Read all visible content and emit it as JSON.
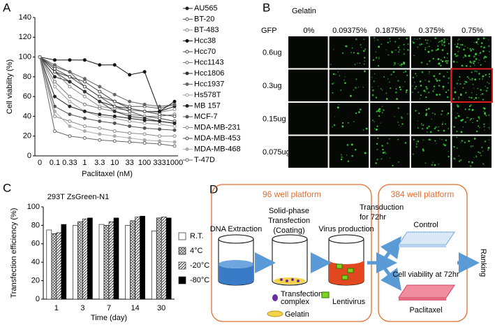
{
  "panel_labels": [
    "A",
    "B",
    "C",
    "D"
  ],
  "chart_data": [
    {
      "type": "line",
      "x_label": "Paclitaxel (nM)",
      "y_label": "Cell viability (%)",
      "categories": [
        "0",
        "0.1",
        "0.33",
        "1",
        "3.3",
        "10",
        "33",
        "100",
        "333",
        "1000"
      ],
      "ylim": [
        0,
        140
      ],
      "yticks": [
        0,
        20,
        40,
        60,
        80,
        100,
        120,
        140
      ],
      "series": [
        {
          "name": "AU565",
          "color": "#222222",
          "marker": "filled",
          "values": [
            100,
            80,
            75,
            65,
            55,
            50,
            48,
            45,
            45,
            50
          ]
        },
        {
          "name": "BT-20",
          "color": "#555555",
          "marker": "open",
          "values": [
            100,
            90,
            85,
            70,
            60,
            55,
            50,
            50,
            48,
            52
          ]
        },
        {
          "name": "BT-483",
          "color": "#888888",
          "marker": "open",
          "values": [
            100,
            85,
            70,
            60,
            50,
            48,
            46,
            45,
            44,
            47
          ]
        },
        {
          "name": "Hcc38",
          "color": "#111111",
          "marker": "filled",
          "values": [
            100,
            97,
            97,
            97,
            92,
            92,
            82,
            85,
            45,
            55
          ]
        },
        {
          "name": "Hcc70",
          "color": "#444444",
          "marker": "open",
          "values": [
            100,
            88,
            80,
            70,
            60,
            50,
            45,
            40,
            38,
            35
          ]
        },
        {
          "name": "Hcc1143",
          "color": "#777777",
          "marker": "open",
          "values": [
            100,
            75,
            60,
            52,
            48,
            45,
            42,
            40,
            40,
            42
          ]
        },
        {
          "name": "Hcc1806",
          "color": "#333333",
          "marker": "filled",
          "values": [
            100,
            85,
            75,
            65,
            55,
            45,
            40,
            38,
            35,
            33
          ]
        },
        {
          "name": "Hcc1937",
          "color": "#666666",
          "marker": "filled",
          "values": [
            100,
            92,
            85,
            78,
            70,
            62,
            55,
            52,
            50,
            52
          ]
        },
        {
          "name": "Hs578T",
          "color": "#999999",
          "marker": "open",
          "values": [
            100,
            70,
            55,
            45,
            40,
            38,
            35,
            33,
            32,
            30
          ]
        },
        {
          "name": "MB 157",
          "color": "#222222",
          "marker": "filled",
          "values": [
            100,
            60,
            50,
            45,
            42,
            40,
            38,
            36,
            35,
            33
          ]
        },
        {
          "name": "MCF-7",
          "color": "#555555",
          "marker": "filled",
          "values": [
            100,
            50,
            42,
            38,
            35,
            33,
            30,
            28,
            27,
            26
          ]
        },
        {
          "name": "MDA-MB-231",
          "color": "#888888",
          "marker": "open",
          "values": [
            100,
            40,
            35,
            30,
            28,
            25,
            23,
            22,
            20,
            20
          ]
        },
        {
          "name": "MDA-MB-453",
          "color": "#444444",
          "marker": "open",
          "values": [
            100,
            85,
            80,
            75,
            65,
            55,
            48,
            45,
            42,
            40
          ]
        },
        {
          "name": "MDA-MB-468",
          "color": "#aaaaaa",
          "marker": "filled",
          "values": [
            100,
            45,
            30,
            25,
            22,
            20,
            18,
            16,
            15,
            14
          ]
        },
        {
          "name": "T-47D",
          "color": "#666666",
          "marker": "open",
          "values": [
            100,
            25,
            20,
            18,
            16,
            15,
            14,
            13,
            12,
            10
          ]
        }
      ]
    },
    {
      "type": "bar",
      "title": "293T  ZsGreen-N1",
      "x_label": "Time (day)",
      "y_label": "Transfection efficiency (%)",
      "categories": [
        "1",
        "3",
        "7",
        "14",
        "30"
      ],
      "ylim": [
        0,
        100
      ],
      "yticks": [
        0,
        20,
        40,
        60,
        80,
        100
      ],
      "series": [
        {
          "name": "R.T.",
          "color": "#ffffff",
          "hatch": "none",
          "values": [
            75,
            80,
            81,
            80,
            74
          ]
        },
        {
          "name": "4°C",
          "color": "#666666",
          "hatch": "cross",
          "values": [
            71,
            84,
            80,
            85,
            88
          ]
        },
        {
          "name": "-20°C",
          "color": "#333333",
          "hatch": "diagonal",
          "values": [
            72,
            87,
            84,
            89,
            89
          ]
        },
        {
          "name": "-80°C",
          "color": "#000000",
          "hatch": "none",
          "values": [
            81,
            88,
            88,
            90,
            88
          ]
        }
      ]
    }
  ],
  "panel_b": {
    "title": "Gelatin",
    "row_header": "GFP",
    "columns": [
      "0%",
      "0.09375%",
      "0.1875%",
      "0.375%",
      "0.75%"
    ],
    "rows": [
      "0.6ug",
      "0.3ug",
      "0.15ug",
      "0.075ug"
    ]
  },
  "panel_d": {
    "left_platform": "96 well platform",
    "right_platform": "384 well platform",
    "step1": "DNA Extraction",
    "step2": [
      "Solid-phase",
      "Transfection",
      "(Coating)"
    ],
    "step3": "Virus production",
    "transduction": [
      "Transduction",
      "for 72hr"
    ],
    "control": "Control",
    "readout": "Cell viability at 72hr",
    "drug": "Paclitaxel",
    "ranking": "Ranking",
    "legend_complex": [
      "Transfection",
      "complex"
    ],
    "legend_lentivirus": "Lentivirus",
    "legend_gelatin": "Gelatin"
  }
}
